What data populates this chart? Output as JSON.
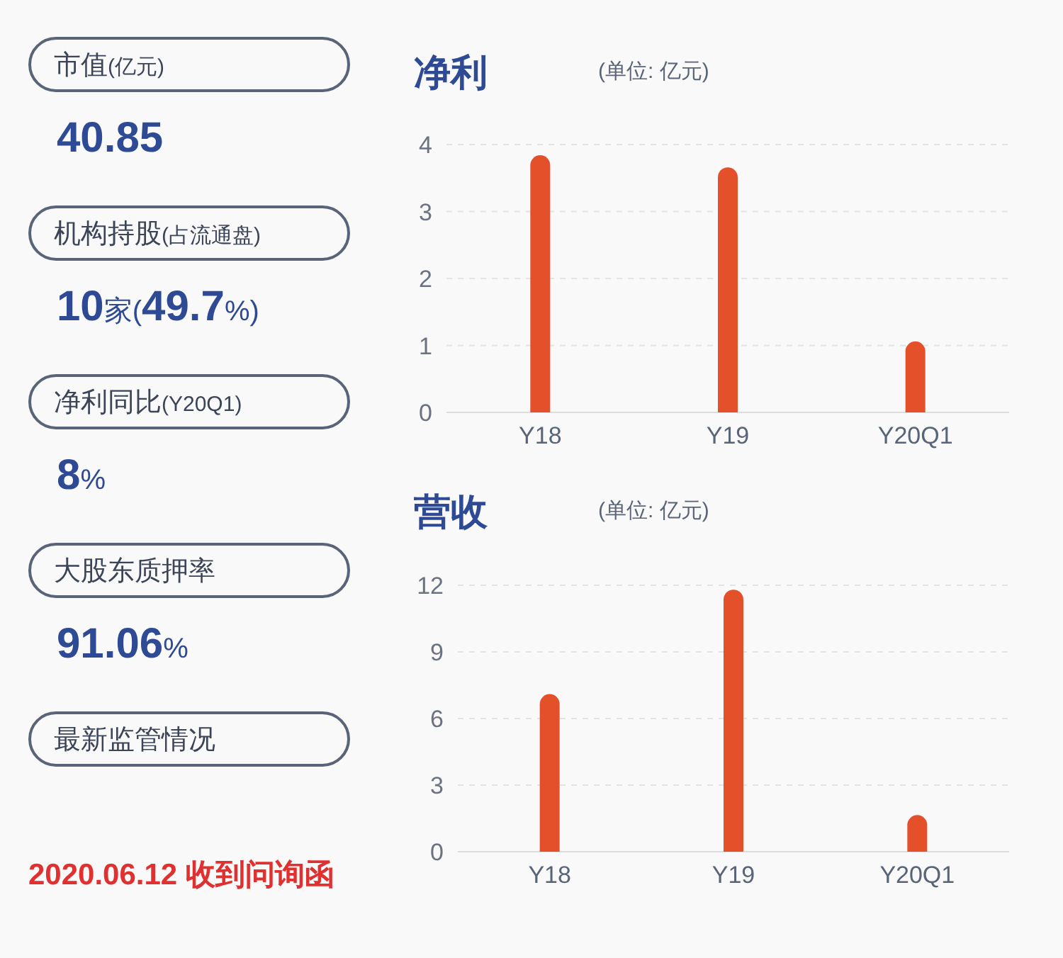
{
  "chart_data": [
    {
      "type": "other",
      "annotations": [
        "市值(亿元)",
        "40.85",
        "机构持股(占流通盘)",
        "10家(49.7%)",
        "净利同比(Y20Q1)",
        "8%",
        "大股东质押率",
        "91.06%",
        "最新监管情况",
        "2020.06.12 收到问询函"
      ]
    },
    {
      "type": "bar",
      "title": "净利",
      "subtitle": "(单位: 亿元)",
      "categories": [
        "Y18",
        "Y19",
        "Y20Q1"
      ],
      "series": [
        {
          "color": "#e3502a",
          "values": [
            3.84,
            3.66,
            1.06
          ]
        }
      ],
      "ylim": [
        0,
        4
      ],
      "yticks": [
        0,
        1,
        2,
        3,
        4
      ],
      "grid": "y"
    },
    {
      "type": "bar",
      "title": "营收",
      "subtitle": "(单位: 亿元)",
      "categories": [
        "Y18",
        "Y19",
        "Y20Q1"
      ],
      "series": [
        {
          "color": "#e3502a",
          "values": [
            7.1,
            11.8,
            1.65
          ]
        }
      ],
      "ylim": [
        0,
        12
      ],
      "yticks": [
        0,
        3,
        6,
        9,
        12
      ],
      "grid": "y"
    }
  ]
}
